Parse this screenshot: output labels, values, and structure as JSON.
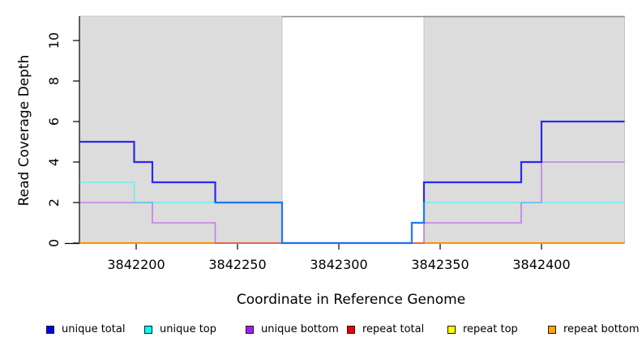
{
  "axes": {
    "x_title": "Coordinate in Reference Genome",
    "y_title": "Read Coverage Depth"
  },
  "chart_data": {
    "type": "line",
    "subtype": "step-coverage",
    "title": "",
    "xlabel": "Coordinate in Reference Genome",
    "ylabel": "Read Coverage Depth",
    "xlim": [
      3842172,
      3842441
    ],
    "ylim": [
      0,
      11.2
    ],
    "x_ticks": [
      3842200,
      3842250,
      3842300,
      3842350,
      3842400
    ],
    "y_ticks": [
      0,
      2,
      4,
      6,
      8,
      10
    ],
    "grid": false,
    "legend_position": "bottom",
    "background": "#ffffff",
    "repeat_region_fill": "#dcdcdc",
    "repeat_region_border": "#c4c4c4",
    "repeat_regions": [
      [
        3842172,
        3842272
      ],
      [
        3842342,
        3842441
      ]
    ],
    "top_boundary_line": {
      "x_from": 3842272,
      "x_to": 3842441,
      "y": 11.2,
      "color": "#8a8a8a"
    },
    "series": [
      {
        "name": "unique total",
        "color": "#1a1ae8",
        "opacity": 0.92,
        "width": 2.2,
        "draw_rank": 4,
        "points": [
          [
            3842172,
            5
          ],
          [
            3842199,
            4
          ],
          [
            3842208,
            3
          ],
          [
            3842239,
            2
          ],
          [
            3842272,
            0
          ],
          [
            3842336,
            1
          ],
          [
            3842342,
            3
          ],
          [
            3842390,
            4
          ],
          [
            3842400,
            6
          ],
          [
            3842441,
            6
          ]
        ]
      },
      {
        "name": "unique top",
        "color": "#00ffff",
        "opacity": 0.5,
        "width": 1.6,
        "draw_rank": 5,
        "points": [
          [
            3842172,
            3
          ],
          [
            3842199,
            2
          ],
          [
            3842272,
            0
          ],
          [
            3842336,
            1
          ],
          [
            3842342,
            2
          ],
          [
            3842441,
            2
          ]
        ]
      },
      {
        "name": "unique bottom",
        "color": "#a020f0",
        "opacity": 0.5,
        "width": 1.6,
        "draw_rank": 3,
        "points": [
          [
            3842172,
            2
          ],
          [
            3842208,
            1
          ],
          [
            3842239,
            0
          ],
          [
            3842342,
            1
          ],
          [
            3842390,
            2
          ],
          [
            3842400,
            4
          ],
          [
            3842441,
            4
          ]
        ]
      },
      {
        "name": "repeat total",
        "color": "#ee0000",
        "opacity": 1,
        "width": 1.6,
        "draw_rank": 0,
        "points": [
          [
            3842172,
            0
          ],
          [
            3842441,
            0
          ]
        ]
      },
      {
        "name": "repeat top",
        "color": "#ffff00",
        "opacity": 1,
        "width": 1.6,
        "draw_rank": 1,
        "points": [
          [
            3842172,
            0
          ],
          [
            3842441,
            0
          ]
        ]
      },
      {
        "name": "repeat bottom",
        "color": "#ff9100",
        "opacity": 1,
        "width": 1.9,
        "draw_rank": 2,
        "points": [
          [
            3842172,
            0
          ],
          [
            3842441,
            0
          ]
        ]
      }
    ]
  },
  "legend": {
    "items": [
      {
        "label": "unique total",
        "color": "#0000ee"
      },
      {
        "label": "unique top",
        "color": "#00ffff"
      },
      {
        "label": "unique bottom",
        "color": "#a020f0"
      },
      {
        "label": "repeat total",
        "color": "#ee0000"
      },
      {
        "label": "repeat top",
        "color": "#ffff00"
      },
      {
        "label": "repeat bottom",
        "color": "#ffa500"
      }
    ]
  }
}
